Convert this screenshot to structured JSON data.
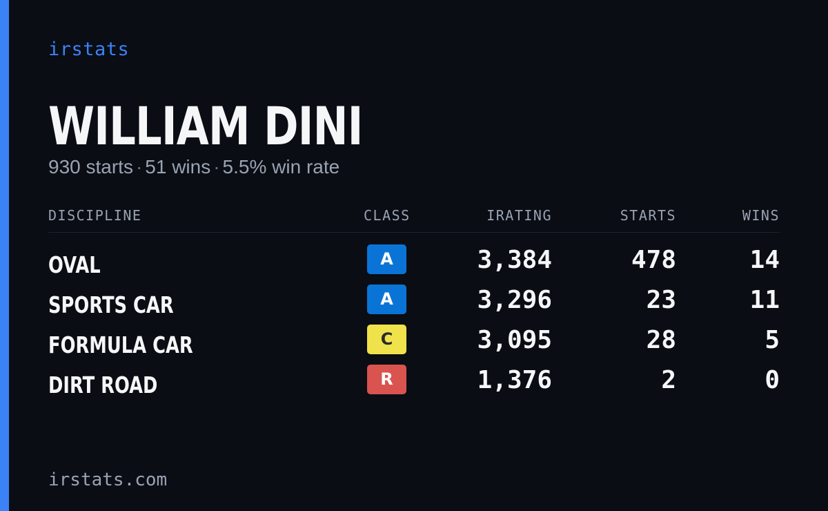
{
  "brand": "irstats",
  "driver": {
    "name": "WILLIAM DINI",
    "starts": "930 starts",
    "wins": "51 wins",
    "win_rate": "5.5% win rate",
    "separator": "·"
  },
  "table": {
    "headers": {
      "discipline": "DISCIPLINE",
      "class": "CLASS",
      "irating": "IRATING",
      "starts": "STARTS",
      "wins": "WINS"
    },
    "rows": [
      {
        "discipline": "OVAL",
        "class": "A",
        "class_bg": "#0a74d6",
        "class_fg": "#ffffff",
        "irating": "3,384",
        "starts": "478",
        "wins": "14"
      },
      {
        "discipline": "SPORTS CAR",
        "class": "A",
        "class_bg": "#0a74d6",
        "class_fg": "#ffffff",
        "irating": "3,296",
        "starts": "23",
        "wins": "11"
      },
      {
        "discipline": "FORMULA CAR",
        "class": "C",
        "class_bg": "#efe24b",
        "class_fg": "#2a2a2a",
        "irating": "3,095",
        "starts": "28",
        "wins": "5"
      },
      {
        "discipline": "DIRT ROAD",
        "class": "R",
        "class_bg": "#d9534f",
        "class_fg": "#ffffff",
        "irating": "1,376",
        "starts": "2",
        "wins": "0"
      }
    ]
  },
  "footer": {
    "domain": "irstats.com"
  },
  "colors": {
    "accent": "#3b82f6",
    "background": "#0a0d14",
    "text_primary": "#f5f6f8",
    "text_muted": "#9aa3b2"
  }
}
